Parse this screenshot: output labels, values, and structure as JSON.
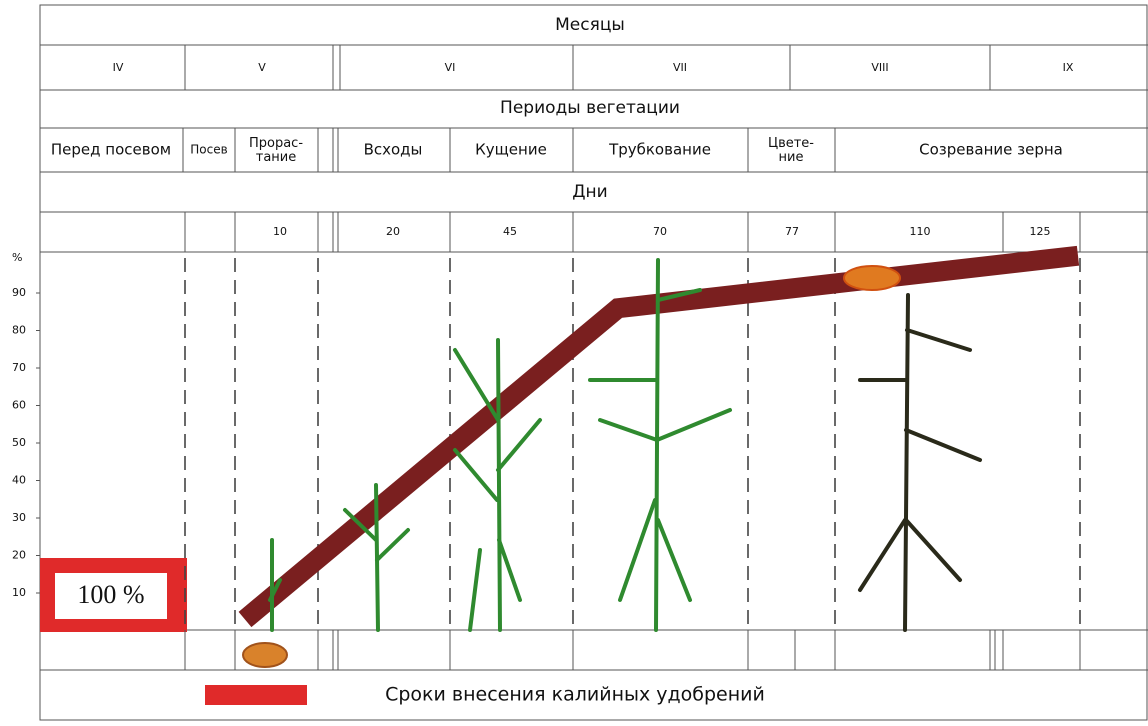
{
  "header": {
    "months_title": "Месяцы",
    "periods_title": "Периоды вегетации",
    "days_title": "Дни"
  },
  "months": [
    "IV",
    "V",
    "VI",
    "VII",
    "VIII",
    "IX"
  ],
  "periods": [
    "Перед посевом",
    "Посев",
    "Прорас-\nтание",
    "Всходы",
    "Кущение",
    "Трубкование",
    "Цвете-\nние",
    "Созревание зерна"
  ],
  "days": [
    "10",
    "20",
    "45",
    "70",
    "77",
    "110",
    "125"
  ],
  "y_axis": {
    "unit": "%",
    "ticks": [
      10,
      20,
      30,
      40,
      50,
      60,
      70,
      80,
      90
    ]
  },
  "uptake_curve": {
    "values": [
      0,
      83,
      97
    ]
  },
  "box_label": "100 %",
  "legend": "Сроки внесения калийных удобрений"
}
